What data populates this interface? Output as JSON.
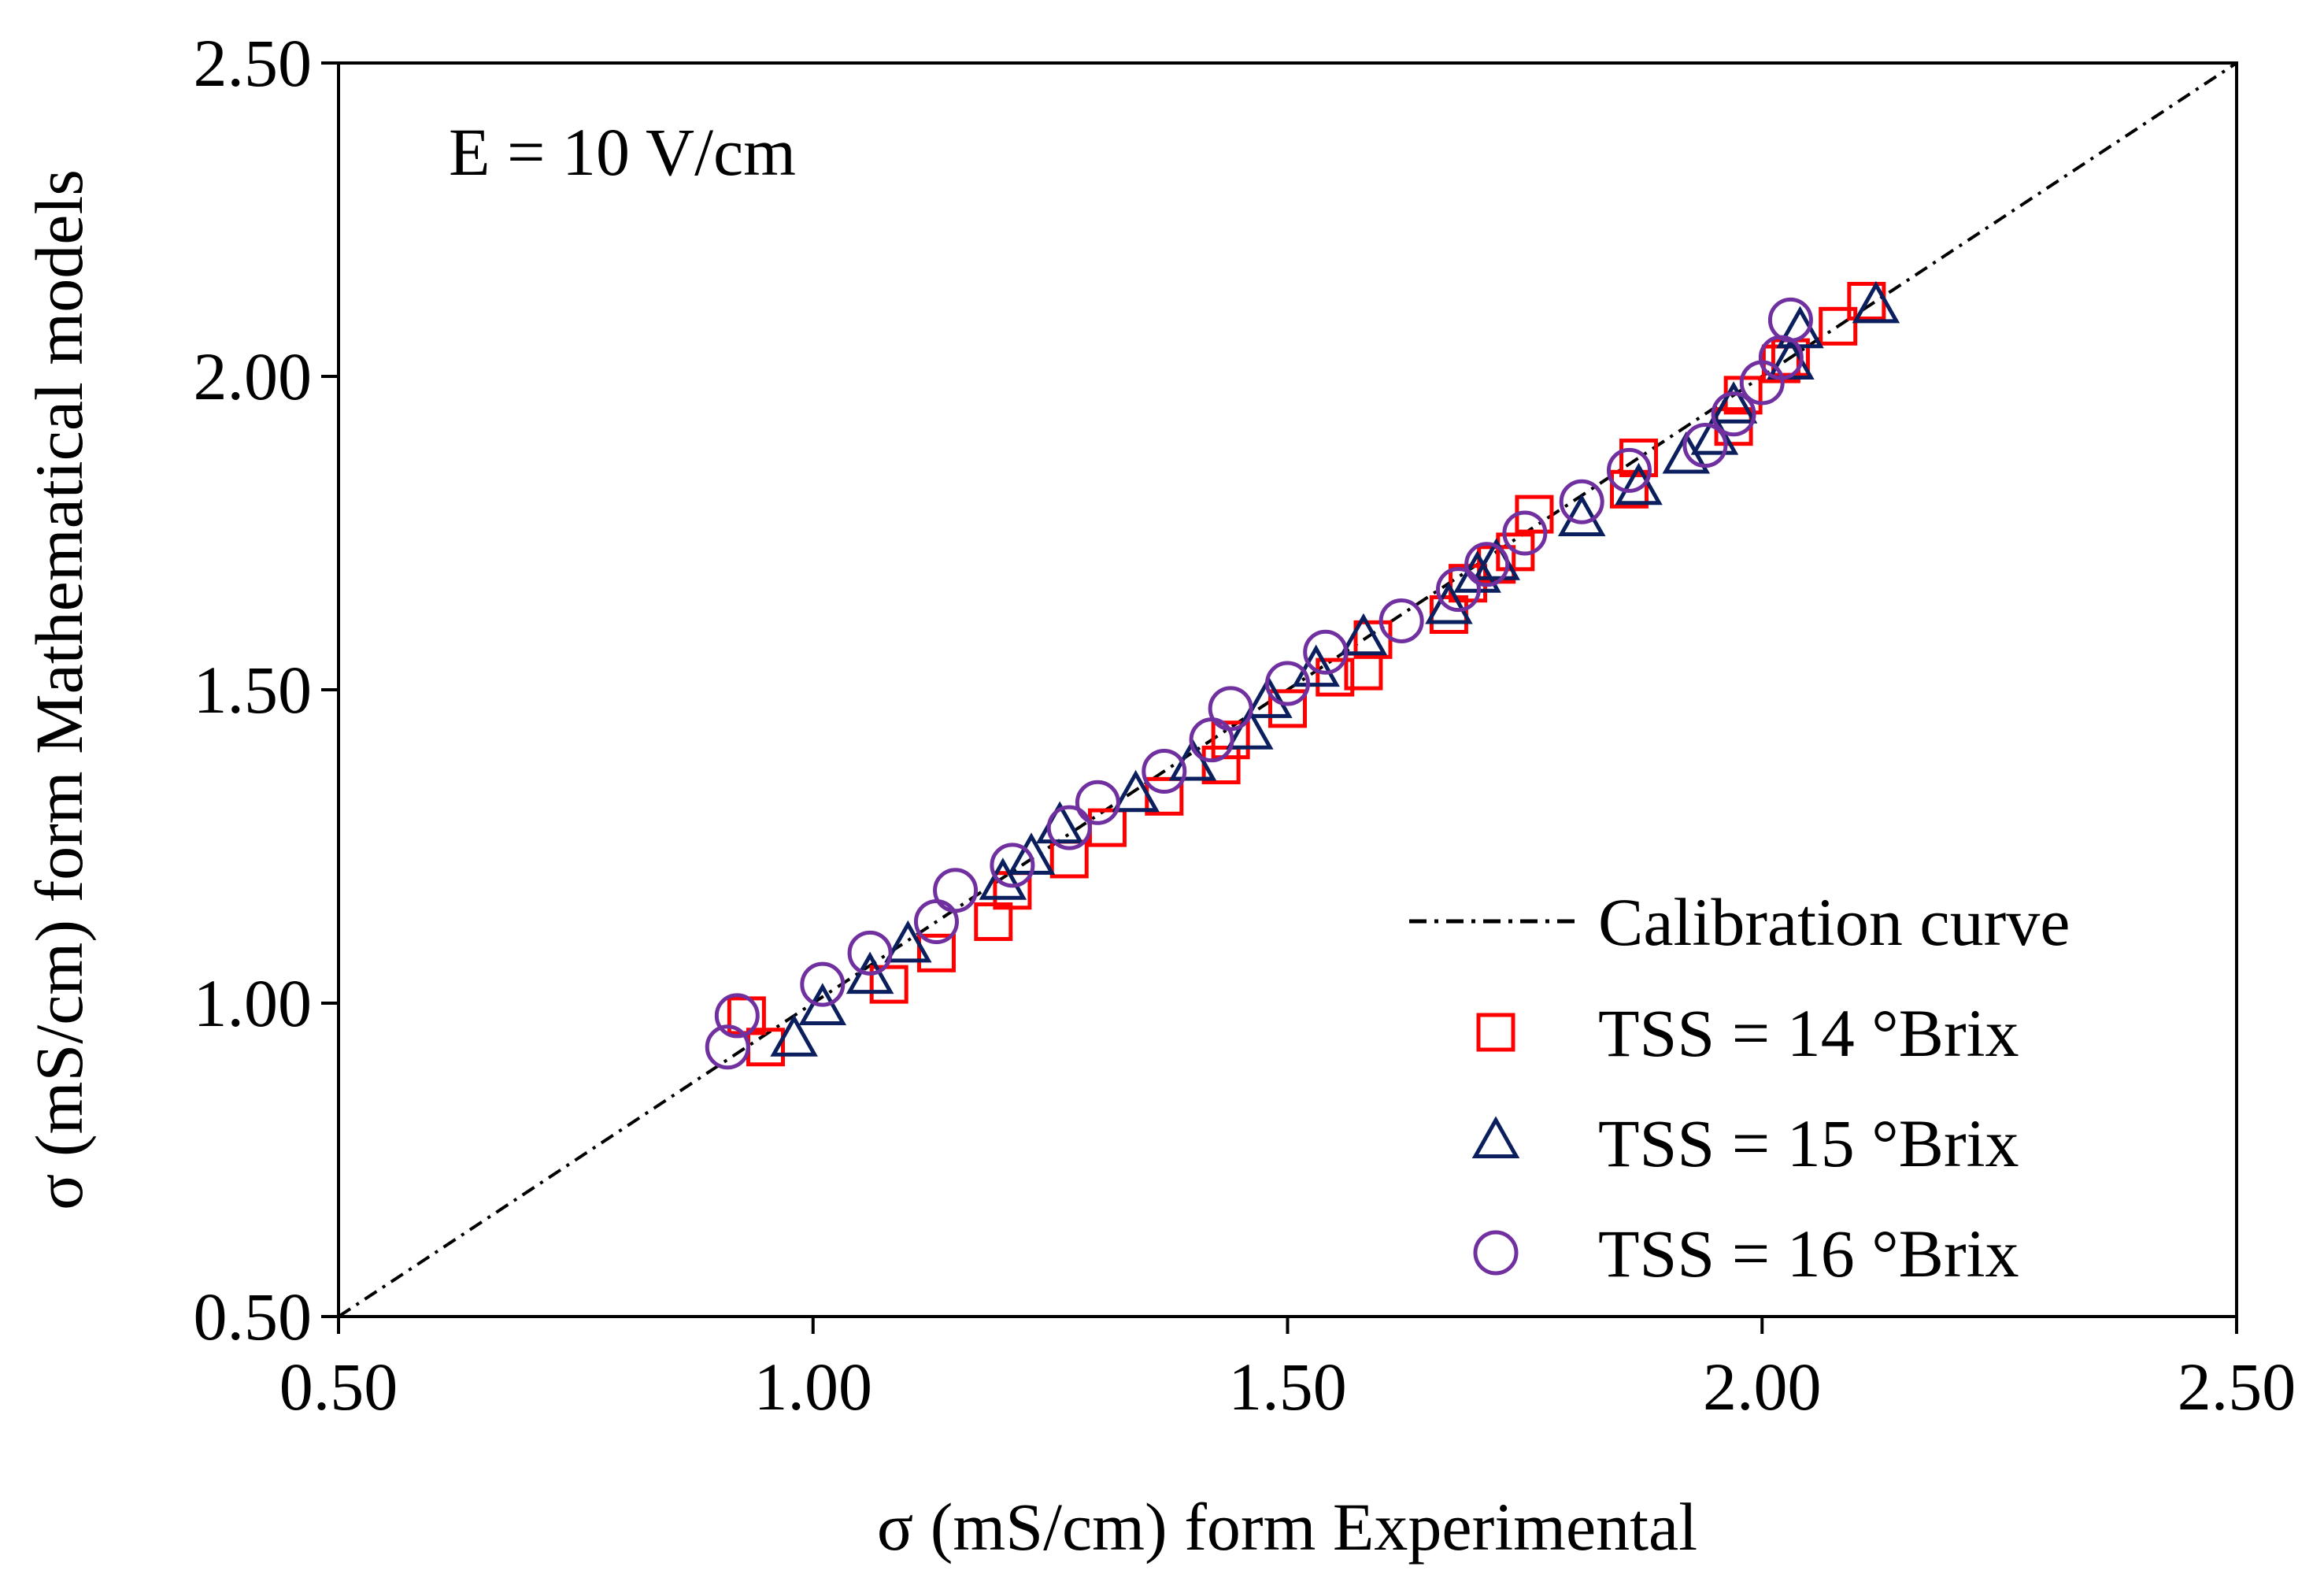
{
  "chart_data": {
    "type": "scatter",
    "title": "",
    "annotation": "E = 10 V/cm",
    "xlabel": "σ (mS/cm) form Experimental",
    "ylabel": "σ (mS/cm) form Mathematical models",
    "xlim": [
      0.5,
      2.5
    ],
    "ylim": [
      0.5,
      2.5
    ],
    "xticks": [
      "0.50",
      "1.00",
      "1.50",
      "2.00",
      "2.50"
    ],
    "yticks": [
      "0.50",
      "1.00",
      "1.50",
      "2.00",
      "2.50"
    ],
    "grid": false,
    "legend_position": "bottom-right",
    "calibration_curve": {
      "name": "Calibration curve",
      "x": [
        0.5,
        2.5
      ],
      "y": [
        0.5,
        2.5
      ],
      "style": "dash-dot",
      "color": "#000000"
    },
    "series": [
      {
        "name": "TSS = 14 °Brix",
        "marker": "square",
        "color": "#ff0000",
        "x": [
          0.93,
          0.95,
          1.08,
          1.13,
          1.19,
          1.21,
          1.27,
          1.31,
          1.37,
          1.43,
          1.44,
          1.5,
          1.55,
          1.58,
          1.59,
          1.67,
          1.69,
          1.72,
          1.74,
          1.76,
          1.86,
          1.87,
          1.97,
          1.98,
          2.02,
          2.03,
          2.08,
          2.11
        ],
        "y": [
          0.98,
          0.93,
          1.03,
          1.08,
          1.13,
          1.18,
          1.23,
          1.28,
          1.33,
          1.38,
          1.42,
          1.47,
          1.52,
          1.53,
          1.58,
          1.62,
          1.67,
          1.7,
          1.72,
          1.78,
          1.82,
          1.87,
          1.92,
          1.97,
          2.02,
          2.03,
          2.08,
          2.12
        ]
      },
      {
        "name": "TSS = 15 °Brix",
        "marker": "triangle",
        "color": "#0b1f5e",
        "x": [
          0.98,
          1.01,
          1.06,
          1.1,
          1.2,
          1.23,
          1.26,
          1.34,
          1.4,
          1.46,
          1.48,
          1.53,
          1.58,
          1.67,
          1.7,
          1.72,
          1.81,
          1.87,
          1.92,
          1.95,
          1.97,
          2.03,
          2.04,
          2.12
        ],
        "y": [
          0.94,
          0.99,
          1.04,
          1.09,
          1.19,
          1.23,
          1.28,
          1.33,
          1.38,
          1.43,
          1.48,
          1.53,
          1.58,
          1.63,
          1.68,
          1.7,
          1.77,
          1.82,
          1.87,
          1.9,
          1.95,
          2.02,
          2.07,
          2.11
        ]
      },
      {
        "name": "TSS = 16 °Brix",
        "marker": "circle",
        "color": "#7030a0",
        "x": [
          0.91,
          0.92,
          1.01,
          1.06,
          1.13,
          1.15,
          1.21,
          1.27,
          1.3,
          1.37,
          1.42,
          1.44,
          1.5,
          1.54,
          1.62,
          1.68,
          1.71,
          1.75,
          1.81,
          1.86,
          1.94,
          1.97,
          2.0,
          2.02,
          2.03
        ],
        "y": [
          0.93,
          0.98,
          1.03,
          1.08,
          1.13,
          1.18,
          1.22,
          1.28,
          1.32,
          1.37,
          1.42,
          1.47,
          1.51,
          1.56,
          1.61,
          1.66,
          1.7,
          1.75,
          1.8,
          1.85,
          1.89,
          1.94,
          1.99,
          2.03,
          2.09
        ]
      }
    ]
  }
}
